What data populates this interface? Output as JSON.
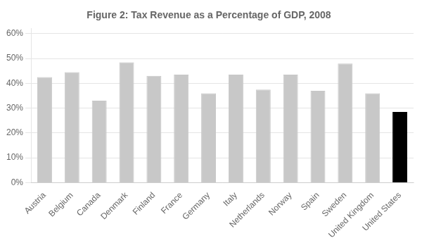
{
  "chart_data": {
    "type": "bar",
    "title": "Figure 2: Tax Revenue as a Percentage of GDP, 2008",
    "categories": [
      "Austria",
      "Belgium",
      "Canada",
      "Denmark",
      "Finland",
      "France",
      "Germany",
      "Italy",
      "Netherlands",
      "Norway",
      "Spain",
      "Sweden",
      "United Kingdom",
      "United States"
    ],
    "values": [
      42.5,
      44.5,
      33.0,
      48.5,
      43.0,
      43.5,
      36.0,
      43.5,
      37.5,
      43.5,
      37.0,
      48.0,
      36.0,
      28.5
    ],
    "colors": [
      "#c8c8c8",
      "#c8c8c8",
      "#c8c8c8",
      "#c8c8c8",
      "#c8c8c8",
      "#c8c8c8",
      "#c8c8c8",
      "#c8c8c8",
      "#c8c8c8",
      "#c8c8c8",
      "#c8c8c8",
      "#c8c8c8",
      "#c8c8c8",
      "#000000"
    ],
    "ylim": [
      0,
      62
    ],
    "yticks": [
      {
        "value": 0,
        "label": "0%"
      },
      {
        "value": 10,
        "label": "10%"
      },
      {
        "value": 20,
        "label": "20%"
      },
      {
        "value": 30,
        "label": "30%"
      },
      {
        "value": 40,
        "label": "40%"
      },
      {
        "value": 50,
        "label": "50%"
      },
      {
        "value": 60,
        "label": "60%"
      }
    ],
    "grid": true
  }
}
